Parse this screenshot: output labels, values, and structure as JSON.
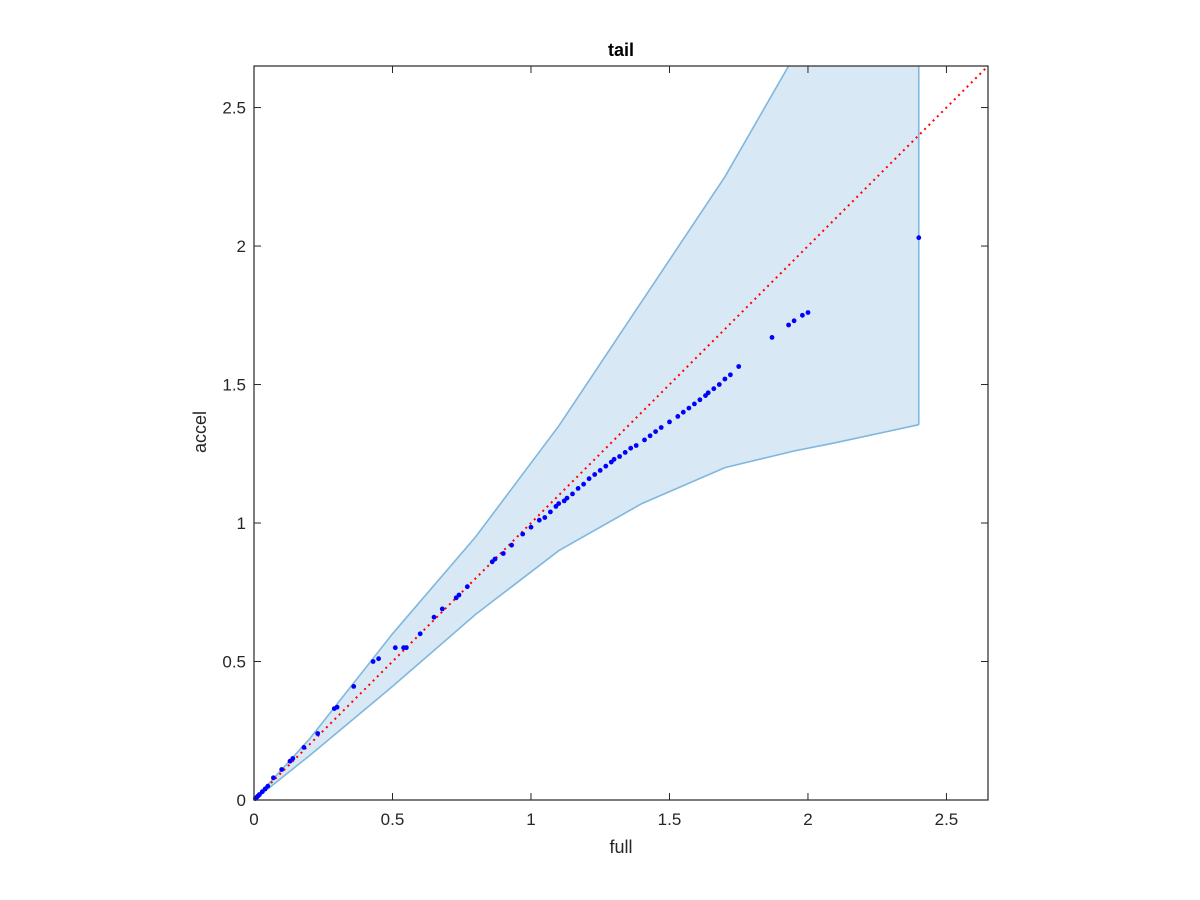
{
  "chart_data": {
    "type": "scatter",
    "title": "tail",
    "xlabel": "full",
    "ylabel": "accel",
    "xlim": [
      0,
      2.65
    ],
    "ylim": [
      0,
      2.65
    ],
    "xticks": [
      {
        "value": 0,
        "label": "0"
      },
      {
        "value": 0.5,
        "label": "0.5"
      },
      {
        "value": 1,
        "label": "1"
      },
      {
        "value": 1.5,
        "label": "1.5"
      },
      {
        "value": 2,
        "label": "2"
      },
      {
        "value": 2.5,
        "label": "2.5"
      }
    ],
    "yticks": [
      {
        "value": 0,
        "label": "0"
      },
      {
        "value": 0.5,
        "label": "0.5"
      },
      {
        "value": 1,
        "label": "1"
      },
      {
        "value": 1.5,
        "label": "1.5"
      },
      {
        "value": 2,
        "label": "2"
      },
      {
        "value": 2.5,
        "label": "2.5"
      }
    ],
    "grid": false,
    "colors": {
      "band_fill": "#d9e8f5",
      "band_edge": "#7fb7de",
      "points": "#0000ff",
      "reference_line": "#ff0000",
      "axes": "#262626"
    },
    "band": {
      "upper": [
        [
          0,
          0
        ],
        [
          0.2,
          0.22
        ],
        [
          0.5,
          0.6
        ],
        [
          0.8,
          0.95
        ],
        [
          1.1,
          1.35
        ],
        [
          1.4,
          1.8
        ],
        [
          1.7,
          2.25
        ],
        [
          1.93,
          2.65
        ],
        [
          2.4,
          2.65
        ]
      ],
      "lower": [
        [
          0,
          0
        ],
        [
          0.2,
          0.16
        ],
        [
          0.5,
          0.41
        ],
        [
          0.8,
          0.67
        ],
        [
          1.1,
          0.9
        ],
        [
          1.4,
          1.07
        ],
        [
          1.7,
          1.2
        ],
        [
          1.95,
          1.26
        ],
        [
          2.1,
          1.29
        ],
        [
          2.4,
          1.355
        ]
      ]
    },
    "reference_line": [
      [
        0,
        0
      ],
      [
        2.65,
        2.65
      ]
    ],
    "points": [
      [
        0.005,
        0.005
      ],
      [
        0.01,
        0.01
      ],
      [
        0.015,
        0.015
      ],
      [
        0.02,
        0.02
      ],
      [
        0.03,
        0.03
      ],
      [
        0.04,
        0.04
      ],
      [
        0.05,
        0.05
      ],
      [
        0.07,
        0.08
      ],
      [
        0.1,
        0.11
      ],
      [
        0.13,
        0.14
      ],
      [
        0.14,
        0.15
      ],
      [
        0.18,
        0.19
      ],
      [
        0.23,
        0.24
      ],
      [
        0.29,
        0.33
      ],
      [
        0.3,
        0.335
      ],
      [
        0.36,
        0.41
      ],
      [
        0.43,
        0.5
      ],
      [
        0.45,
        0.51
      ],
      [
        0.51,
        0.55
      ],
      [
        0.54,
        0.55
      ],
      [
        0.55,
        0.55
      ],
      [
        0.6,
        0.6
      ],
      [
        0.65,
        0.66
      ],
      [
        0.68,
        0.69
      ],
      [
        0.73,
        0.73
      ],
      [
        0.74,
        0.74
      ],
      [
        0.77,
        0.77
      ],
      [
        0.86,
        0.86
      ],
      [
        0.87,
        0.87
      ],
      [
        0.9,
        0.89
      ],
      [
        0.93,
        0.92
      ],
      [
        0.97,
        0.96
      ],
      [
        1.0,
        0.985
      ],
      [
        1.03,
        1.01
      ],
      [
        1.05,
        1.02
      ],
      [
        1.07,
        1.04
      ],
      [
        1.09,
        1.06
      ],
      [
        1.1,
        1.07
      ],
      [
        1.12,
        1.08
      ],
      [
        1.13,
        1.09
      ],
      [
        1.15,
        1.105
      ],
      [
        1.17,
        1.125
      ],
      [
        1.19,
        1.14
      ],
      [
        1.21,
        1.16
      ],
      [
        1.23,
        1.175
      ],
      [
        1.25,
        1.19
      ],
      [
        1.27,
        1.205
      ],
      [
        1.29,
        1.22
      ],
      [
        1.3,
        1.23
      ],
      [
        1.32,
        1.24
      ],
      [
        1.34,
        1.255
      ],
      [
        1.36,
        1.27
      ],
      [
        1.38,
        1.28
      ],
      [
        1.41,
        1.3
      ],
      [
        1.43,
        1.315
      ],
      [
        1.45,
        1.33
      ],
      [
        1.47,
        1.345
      ],
      [
        1.5,
        1.365
      ],
      [
        1.53,
        1.385
      ],
      [
        1.55,
        1.4
      ],
      [
        1.57,
        1.415
      ],
      [
        1.59,
        1.43
      ],
      [
        1.61,
        1.445
      ],
      [
        1.63,
        1.46
      ],
      [
        1.64,
        1.47
      ],
      [
        1.66,
        1.485
      ],
      [
        1.68,
        1.5
      ],
      [
        1.7,
        1.52
      ],
      [
        1.72,
        1.535
      ],
      [
        1.75,
        1.565
      ],
      [
        1.87,
        1.67
      ],
      [
        1.93,
        1.715
      ],
      [
        1.95,
        1.73
      ],
      [
        1.98,
        1.75
      ],
      [
        2.0,
        1.76
      ],
      [
        2.4,
        2.03
      ]
    ]
  }
}
